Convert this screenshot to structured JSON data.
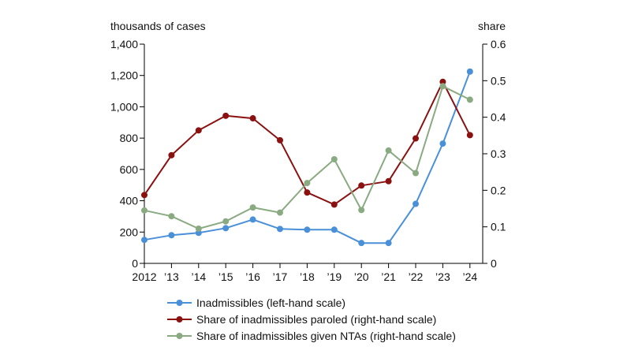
{
  "chart_data": {
    "type": "line",
    "left_axis_label": "thousands of cases",
    "right_axis_label": "share",
    "categories": [
      "2012",
      "’13",
      "’14",
      "’15",
      "’16",
      "’17",
      "’18",
      "’19",
      "’20",
      "’21",
      "’22",
      "’23",
      "’24"
    ],
    "left_axis": {
      "min": 0,
      "max": 1400,
      "ticks": [
        0,
        200,
        400,
        600,
        800,
        1000,
        1200,
        1400
      ],
      "tick_labels": [
        "0",
        "200",
        "400",
        "600",
        "800",
        "1,000",
        "1,200",
        "1,400"
      ]
    },
    "right_axis": {
      "min": 0,
      "max": 0.6,
      "ticks": [
        0,
        0.1,
        0.2,
        0.3,
        0.4,
        0.5,
        0.6
      ],
      "tick_labels": [
        "0",
        "0.1",
        "0.2",
        "0.3",
        "0.4",
        "0.5",
        "0.6"
      ]
    },
    "grid": false,
    "legend_position": "bottom",
    "series": [
      {
        "name": "Inadmissibles (left-hand scale)",
        "axis": "left",
        "color": "#4a90d9",
        "values": [
          150,
          180,
          195,
          225,
          280,
          220,
          215,
          215,
          130,
          130,
          380,
          765,
          1225
        ]
      },
      {
        "name": "Share of inadmissibles paroled (right-hand scale)",
        "axis": "right",
        "color": "#8b1010",
        "values": [
          0.187,
          0.296,
          0.364,
          0.404,
          0.397,
          0.337,
          0.194,
          0.161,
          0.213,
          0.225,
          0.342,
          0.497,
          0.351
        ]
      },
      {
        "name": "Share of inadmissibles given NTAs (right-hand scale)",
        "axis": "right",
        "color": "#8aaa82",
        "values": [
          0.145,
          0.129,
          0.095,
          0.115,
          0.153,
          0.139,
          0.22,
          0.285,
          0.146,
          0.309,
          0.247,
          0.485,
          0.448
        ]
      }
    ]
  }
}
